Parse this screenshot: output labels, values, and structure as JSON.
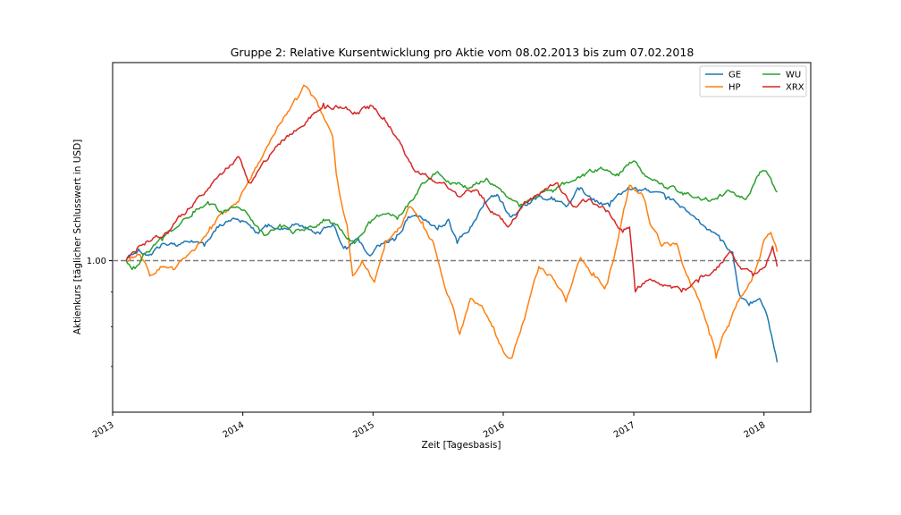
{
  "chart_data": {
    "type": "line",
    "title": "Gruppe 2: Relative Kursentwicklung pro Aktie vom 08.02.2013 bis zum 07.02.2018",
    "xlabel": "Zeit [Tagesbasis]",
    "ylabel": "Aktienkurs [täglicher Schlusswert in USD]",
    "x_range": [
      "2013-01-01",
      "2018-05-12"
    ],
    "y_range": [
      0.6,
      1.95
    ],
    "y_scale": "log",
    "x_ticks": [
      "2013",
      "2014",
      "2015",
      "2016",
      "2017",
      "2018"
    ],
    "y_ticks": [
      1.0
    ],
    "y_tick_labels": [
      "1.00"
    ],
    "reference_line": {
      "y": 1.0,
      "style": "dashed",
      "color": "#7f7f7f"
    },
    "grid": false,
    "legend_position": "top-right",
    "series": [
      {
        "name": "GE",
        "color": "#1f77b4",
        "points": [
          [
            "2013-02-08",
            1.0
          ],
          [
            "2013-03-15",
            1.04
          ],
          [
            "2013-04-20",
            1.02
          ],
          [
            "2013-05-25",
            1.06
          ],
          [
            "2013-07-01",
            1.05
          ],
          [
            "2013-08-10",
            1.07
          ],
          [
            "2013-09-15",
            1.05
          ],
          [
            "2013-10-20",
            1.12
          ],
          [
            "2013-12-01",
            1.15
          ],
          [
            "2014-01-10",
            1.14
          ],
          [
            "2014-02-10",
            1.1
          ],
          [
            "2014-03-10",
            1.12
          ],
          [
            "2014-04-15",
            1.11
          ],
          [
            "2014-05-20",
            1.13
          ],
          [
            "2014-06-25",
            1.12
          ],
          [
            "2014-08-01",
            1.1
          ],
          [
            "2014-09-10",
            1.13
          ],
          [
            "2014-10-15",
            1.05
          ],
          [
            "2014-11-20",
            1.08
          ],
          [
            "2014-12-20",
            1.02
          ],
          [
            "2015-01-20",
            1.05
          ],
          [
            "2015-03-01",
            1.07
          ],
          [
            "2015-04-10",
            1.16
          ],
          [
            "2015-05-20",
            1.15
          ],
          [
            "2015-07-01",
            1.11
          ],
          [
            "2015-08-01",
            1.15
          ],
          [
            "2015-08-25",
            1.06
          ],
          [
            "2015-10-01",
            1.12
          ],
          [
            "2015-11-10",
            1.22
          ],
          [
            "2015-12-15",
            1.25
          ],
          [
            "2016-01-20",
            1.16
          ],
          [
            "2016-02-20",
            1.2
          ],
          [
            "2016-04-01",
            1.23
          ],
          [
            "2016-05-15",
            1.24
          ],
          [
            "2016-06-25",
            1.2
          ],
          [
            "2016-08-01",
            1.27
          ],
          [
            "2016-09-15",
            1.22
          ],
          [
            "2016-10-25",
            1.2
          ],
          [
            "2016-12-01",
            1.26
          ],
          [
            "2017-01-05",
            1.28
          ],
          [
            "2017-02-15",
            1.26
          ],
          [
            "2017-04-01",
            1.23
          ],
          [
            "2017-05-15",
            1.2
          ],
          [
            "2017-06-20",
            1.16
          ],
          [
            "2017-07-25",
            1.11
          ],
          [
            "2017-09-01",
            1.07
          ],
          [
            "2017-10-05",
            1.03
          ],
          [
            "2017-10-25",
            0.89
          ],
          [
            "2017-11-20",
            0.86
          ],
          [
            "2017-12-20",
            0.88
          ],
          [
            "2018-01-10",
            0.83
          ],
          [
            "2018-02-07",
            0.71
          ]
        ]
      },
      {
        "name": "HP",
        "color": "#ff7f0e",
        "points": [
          [
            "2013-02-08",
            1.0
          ],
          [
            "2013-03-15",
            1.02
          ],
          [
            "2013-04-15",
            0.95
          ],
          [
            "2013-05-15",
            0.98
          ],
          [
            "2013-06-20",
            0.97
          ],
          [
            "2013-07-25",
            1.01
          ],
          [
            "2013-08-25",
            1.05
          ],
          [
            "2013-10-01",
            1.12
          ],
          [
            "2013-11-10",
            1.18
          ],
          [
            "2013-12-20",
            1.22
          ],
          [
            "2014-02-01",
            1.35
          ],
          [
            "2014-03-15",
            1.48
          ],
          [
            "2014-04-25",
            1.62
          ],
          [
            "2014-06-01",
            1.72
          ],
          [
            "2014-06-25",
            1.8
          ],
          [
            "2014-08-01",
            1.68
          ],
          [
            "2014-09-10",
            1.52
          ],
          [
            "2014-09-20",
            1.34
          ],
          [
            "2014-10-01",
            1.24
          ],
          [
            "2014-10-20",
            1.13
          ],
          [
            "2014-11-05",
            0.95
          ],
          [
            "2014-12-01",
            1.0
          ],
          [
            "2015-01-05",
            0.93
          ],
          [
            "2015-02-05",
            1.07
          ],
          [
            "2015-03-20",
            1.12
          ],
          [
            "2015-04-15",
            1.2
          ],
          [
            "2015-05-20",
            1.14
          ],
          [
            "2015-06-20",
            1.06
          ],
          [
            "2015-07-20",
            0.92
          ],
          [
            "2015-08-15",
            0.85
          ],
          [
            "2015-09-01",
            0.78
          ],
          [
            "2015-10-01",
            0.88
          ],
          [
            "2015-11-10",
            0.84
          ],
          [
            "2015-12-05",
            0.8
          ],
          [
            "2016-01-05",
            0.73
          ],
          [
            "2016-01-25",
            0.72
          ],
          [
            "2016-03-05",
            0.84
          ],
          [
            "2016-04-10",
            0.98
          ],
          [
            "2016-05-20",
            0.94
          ],
          [
            "2016-06-25",
            0.87
          ],
          [
            "2016-08-05",
            1.01
          ],
          [
            "2016-09-10",
            0.96
          ],
          [
            "2016-10-15",
            0.92
          ],
          [
            "2016-11-10",
            1.03
          ],
          [
            "2016-12-20",
            1.29
          ],
          [
            "2017-01-25",
            1.25
          ],
          [
            "2017-02-20",
            1.12
          ],
          [
            "2017-03-20",
            1.05
          ],
          [
            "2017-05-01",
            1.06
          ],
          [
            "2017-06-10",
            0.92
          ],
          [
            "2017-07-10",
            0.85
          ],
          [
            "2017-08-01",
            0.78
          ],
          [
            "2017-08-20",
            0.72
          ],
          [
            "2017-09-20",
            0.8
          ],
          [
            "2017-10-25",
            0.88
          ],
          [
            "2017-12-01",
            0.95
          ],
          [
            "2018-01-05",
            1.08
          ],
          [
            "2018-01-20",
            1.1
          ],
          [
            "2018-02-07",
            1.03
          ]
        ]
      },
      {
        "name": "WU",
        "color": "#2ca02c",
        "points": [
          [
            "2013-02-08",
            1.0
          ],
          [
            "2013-03-01",
            0.98
          ],
          [
            "2013-04-10",
            1.03
          ],
          [
            "2013-05-20",
            1.07
          ],
          [
            "2013-07-01",
            1.12
          ],
          [
            "2013-08-15",
            1.18
          ],
          [
            "2013-09-25",
            1.22
          ],
          [
            "2013-11-05",
            1.17
          ],
          [
            "2013-12-15",
            1.2
          ],
          [
            "2014-01-20",
            1.16
          ],
          [
            "2014-03-01",
            1.09
          ],
          [
            "2014-04-15",
            1.13
          ],
          [
            "2014-05-25",
            1.1
          ],
          [
            "2014-07-05",
            1.12
          ],
          [
            "2014-08-15",
            1.15
          ],
          [
            "2014-10-01",
            1.11
          ],
          [
            "2014-11-10",
            1.06
          ],
          [
            "2014-12-20",
            1.14
          ],
          [
            "2015-02-01",
            1.17
          ],
          [
            "2015-03-10",
            1.15
          ],
          [
            "2015-04-15",
            1.22
          ],
          [
            "2015-05-20",
            1.3
          ],
          [
            "2015-07-01",
            1.35
          ],
          [
            "2015-08-15",
            1.3
          ],
          [
            "2015-10-01",
            1.28
          ],
          [
            "2015-11-15",
            1.32
          ],
          [
            "2016-01-01",
            1.26
          ],
          [
            "2016-02-15",
            1.2
          ],
          [
            "2016-04-01",
            1.24
          ],
          [
            "2016-05-15",
            1.27
          ],
          [
            "2016-07-01",
            1.3
          ],
          [
            "2016-08-15",
            1.33
          ],
          [
            "2016-10-01",
            1.37
          ],
          [
            "2016-11-15",
            1.34
          ],
          [
            "2017-01-01",
            1.4
          ],
          [
            "2017-02-15",
            1.32
          ],
          [
            "2017-04-01",
            1.28
          ],
          [
            "2017-05-15",
            1.26
          ],
          [
            "2017-07-01",
            1.24
          ],
          [
            "2017-08-15",
            1.23
          ],
          [
            "2017-10-01",
            1.26
          ],
          [
            "2017-11-15",
            1.24
          ],
          [
            "2017-12-25",
            1.35
          ],
          [
            "2018-01-20",
            1.32
          ],
          [
            "2018-02-07",
            1.26
          ]
        ]
      },
      {
        "name": "XRX",
        "color": "#d62728",
        "points": [
          [
            "2013-02-08",
            1.0
          ],
          [
            "2013-03-15",
            1.05
          ],
          [
            "2013-04-25",
            1.08
          ],
          [
            "2013-06-01",
            1.1
          ],
          [
            "2013-07-10",
            1.16
          ],
          [
            "2013-08-20",
            1.22
          ],
          [
            "2013-10-01",
            1.28
          ],
          [
            "2013-11-10",
            1.35
          ],
          [
            "2013-12-20",
            1.42
          ],
          [
            "2014-01-20",
            1.3
          ],
          [
            "2014-03-01",
            1.4
          ],
          [
            "2014-04-15",
            1.48
          ],
          [
            "2014-05-25",
            1.55
          ],
          [
            "2014-07-05",
            1.62
          ],
          [
            "2014-08-15",
            1.7
          ],
          [
            "2014-10-01",
            1.68
          ],
          [
            "2014-11-10",
            1.65
          ],
          [
            "2014-12-20",
            1.67
          ],
          [
            "2015-02-01",
            1.62
          ],
          [
            "2015-03-15",
            1.5
          ],
          [
            "2015-04-25",
            1.36
          ],
          [
            "2015-06-01",
            1.33
          ],
          [
            "2015-07-15",
            1.3
          ],
          [
            "2015-09-01",
            1.24
          ],
          [
            "2015-10-15",
            1.27
          ],
          [
            "2015-12-01",
            1.18
          ],
          [
            "2016-01-15",
            1.12
          ],
          [
            "2016-03-01",
            1.22
          ],
          [
            "2016-04-15",
            1.26
          ],
          [
            "2016-06-01",
            1.3
          ],
          [
            "2016-07-15",
            1.2
          ],
          [
            "2016-09-01",
            1.23
          ],
          [
            "2016-10-15",
            1.18
          ],
          [
            "2016-12-01",
            1.1
          ],
          [
            "2016-12-20",
            1.12
          ],
          [
            "2017-01-05",
            0.9
          ],
          [
            "2017-02-15",
            0.94
          ],
          [
            "2017-04-01",
            0.92
          ],
          [
            "2017-05-15",
            0.9
          ],
          [
            "2017-07-01",
            0.93
          ],
          [
            "2017-08-15",
            0.97
          ],
          [
            "2017-10-01",
            1.03
          ],
          [
            "2017-10-25",
            0.98
          ],
          [
            "2017-12-01",
            0.95
          ],
          [
            "2018-01-10",
            1.0
          ],
          [
            "2018-01-25",
            1.05
          ],
          [
            "2018-02-07",
            0.98
          ]
        ]
      }
    ]
  }
}
